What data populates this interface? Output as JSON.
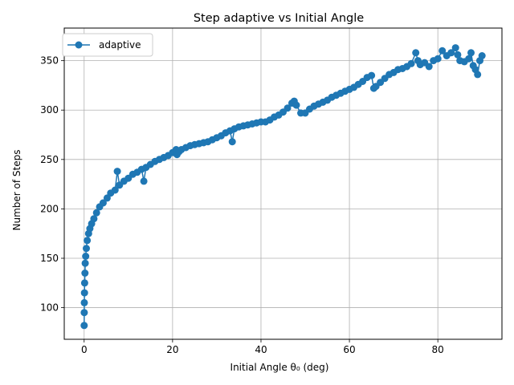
{
  "chart_data": {
    "type": "line",
    "title": "Step adaptive vs Initial Angle",
    "xlabel": "Initial Angle θ₀ (deg)",
    "ylabel": "Number of Steps",
    "xlim": [
      -4.5,
      94.5
    ],
    "ylim": [
      68,
      383
    ],
    "xticks": [
      0,
      20,
      40,
      60,
      80
    ],
    "yticks": [
      100,
      150,
      200,
      250,
      300,
      350
    ],
    "grid": true,
    "legend_position": "top-left",
    "series": [
      {
        "name": "adaptive",
        "color": "#1f77b4",
        "marker": "circle",
        "x": [
          0,
          0.02,
          0.05,
          0.08,
          0.12,
          0.18,
          0.25,
          0.35,
          0.5,
          0.7,
          1.0,
          1.3,
          1.7,
          2.2,
          2.8,
          3.5,
          4.3,
          5.2,
          6.0,
          7.0,
          7.5,
          8.0,
          9.0,
          10,
          11,
          12,
          13,
          13.5,
          14,
          15,
          16,
          17,
          18,
          19,
          20,
          20.8,
          21,
          21.5,
          22,
          23,
          24,
          25,
          26,
          27,
          28,
          29,
          30,
          31,
          32,
          33,
          33.5,
          34,
          35,
          36,
          37,
          38,
          39,
          40,
          41,
          42,
          43,
          44,
          45,
          46,
          47,
          47.5,
          48,
          49,
          50,
          51,
          52,
          53,
          54,
          55,
          56,
          57,
          58,
          59,
          60,
          61,
          62,
          63,
          64,
          65,
          65.5,
          66,
          67,
          68,
          69,
          70,
          71,
          72,
          73,
          74,
          75,
          75.5,
          76,
          77,
          78,
          79,
          80,
          81,
          82,
          83,
          84,
          84.5,
          85,
          86,
          87,
          87.5,
          88,
          88.5,
          89,
          89.5,
          90
        ],
        "y": [
          82,
          95,
          105,
          115,
          125,
          135,
          145,
          152,
          160,
          168,
          175,
          180,
          185,
          190,
          196,
          202,
          206,
          211,
          216,
          219,
          238,
          224,
          228,
          231,
          235,
          237,
          240,
          228,
          242,
          245,
          248,
          250,
          252,
          254,
          257,
          260,
          255,
          258,
          260,
          262,
          264,
          265,
          266,
          267,
          268,
          270,
          272,
          274,
          277,
          279,
          268,
          281,
          283,
          284,
          285,
          286,
          287,
          288,
          288,
          290,
          293,
          295,
          298,
          302,
          307,
          309,
          305,
          297,
          297,
          301,
          304,
          306,
          308,
          310,
          313,
          315,
          317,
          319,
          321,
          323,
          326,
          329,
          333,
          335,
          322,
          324,
          328,
          332,
          336,
          338,
          341,
          342,
          344,
          347,
          358,
          350,
          346,
          348,
          344,
          350,
          352,
          360,
          355,
          358,
          363,
          356,
          350,
          349,
          352,
          358,
          345,
          341,
          336,
          350,
          355
        ]
      }
    ]
  }
}
